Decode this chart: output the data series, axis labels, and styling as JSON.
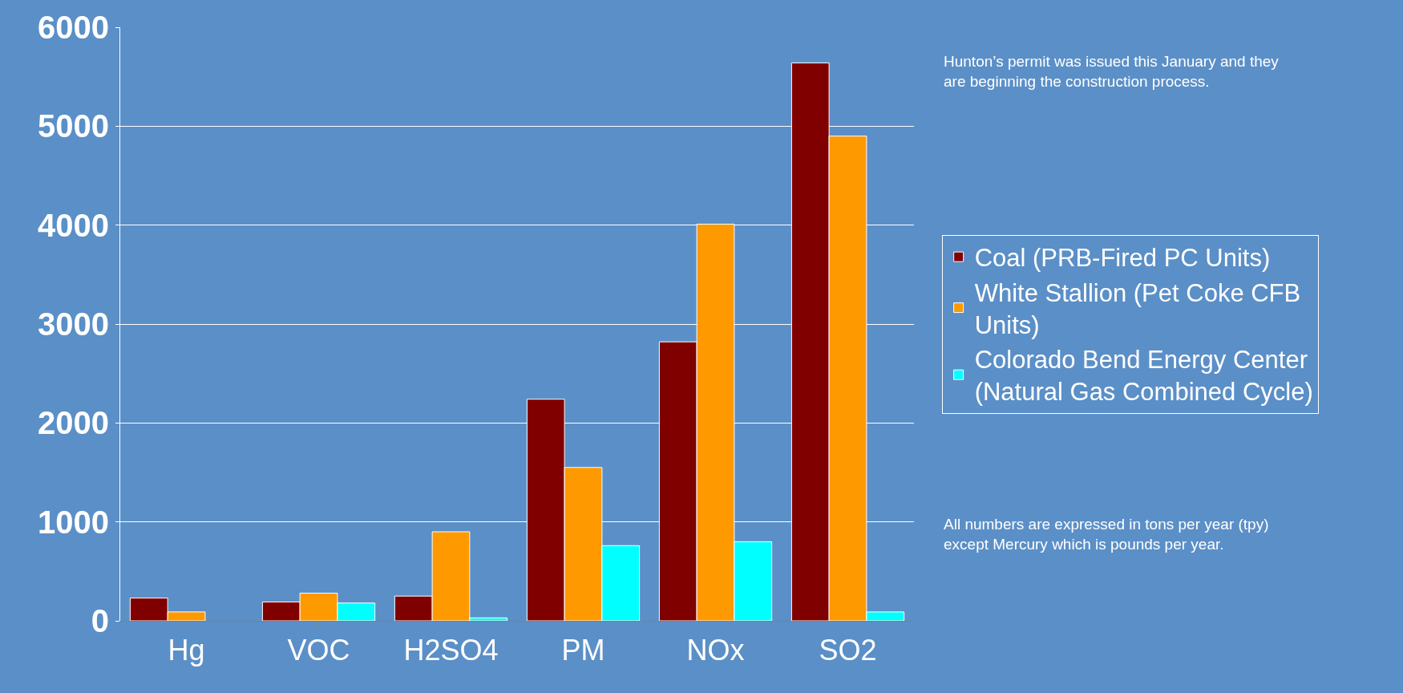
{
  "chart_data": {
    "type": "bar",
    "categories": [
      "Hg",
      "VOC",
      "H2SO4",
      "PM",
      "NOx",
      "SO2"
    ],
    "series": [
      {
        "name": "Coal (PRB-Fired PC Units)",
        "color": "#800000",
        "values": [
          230,
          190,
          250,
          2240,
          2820,
          5640
        ]
      },
      {
        "name": "White Stallion (Pet Coke CFB Units)",
        "color": "#ff9900",
        "values": [
          90,
          280,
          900,
          1550,
          4010,
          4900
        ]
      },
      {
        "name": "Colorado Bend Energy Center (Natural Gas Combined Cycle)",
        "color": "#00ffff",
        "values": [
          null,
          180,
          30,
          760,
          800,
          90
        ]
      }
    ],
    "ylim": [
      0,
      6000
    ],
    "yticks": [
      0,
      1000,
      2000,
      3000,
      4000,
      5000,
      6000
    ],
    "grid": "y",
    "legend": "right",
    "annotations": [
      "Hunton’s permit was issued this January and they are beginning the construction process.",
      "All numbers are expressed in tons per year (tpy) except Mercury which is pounds per year."
    ]
  }
}
